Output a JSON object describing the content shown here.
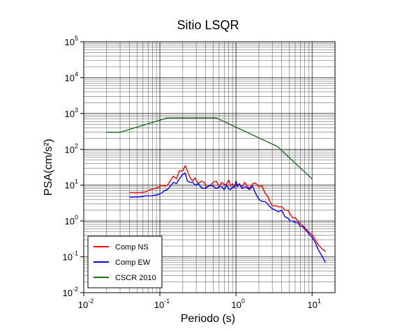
{
  "chart_data": {
    "type": "line",
    "title": "Sitio LSQR",
    "xlabel": "Periodo (s)",
    "ylabel": "PSA(cm/s²)",
    "xscale": "log",
    "yscale": "log",
    "xlim": [
      0.01,
      20
    ],
    "ylim": [
      0.01,
      100000
    ],
    "grid": true,
    "legend_position": "bottom-left",
    "x_ticks": [
      {
        "base": "10",
        "exp": "-2",
        "value": 0.01
      },
      {
        "base": "10",
        "exp": "-1",
        "value": 0.1
      },
      {
        "base": "10",
        "exp": "0",
        "value": 1
      },
      {
        "base": "10",
        "exp": "1",
        "value": 10
      }
    ],
    "y_ticks": [
      {
        "base": "10",
        "exp": "-2",
        "value": 0.01
      },
      {
        "base": "10",
        "exp": "-1",
        "value": 0.1
      },
      {
        "base": "10",
        "exp": "0",
        "value": 1
      },
      {
        "base": "10",
        "exp": "1",
        "value": 10
      },
      {
        "base": "10",
        "exp": "2",
        "value": 100
      },
      {
        "base": "10",
        "exp": "3",
        "value": 1000
      },
      {
        "base": "10",
        "exp": "4",
        "value": 10000
      },
      {
        "base": "10",
        "exp": "5",
        "value": 100000
      }
    ],
    "series": [
      {
        "name": "Comp NS",
        "color": "#ff0000",
        "x": [
          0.04,
          0.055,
          0.065,
          0.075,
          0.085,
          0.095,
          0.105,
          0.115,
          0.125,
          0.135,
          0.15,
          0.165,
          0.18,
          0.2,
          0.215,
          0.23,
          0.25,
          0.27,
          0.29,
          0.32,
          0.35,
          0.38,
          0.41,
          0.45,
          0.5,
          0.55,
          0.6,
          0.65,
          0.7,
          0.75,
          0.8,
          0.85,
          0.9,
          0.95,
          1.0,
          1.05,
          1.1,
          1.2,
          1.3,
          1.4,
          1.5,
          1.65,
          1.8,
          2.0,
          2.2,
          2.4,
          2.6,
          2.8,
          3.0,
          3.3,
          3.6,
          4.0,
          4.4,
          4.8,
          5.2,
          5.6,
          6.0,
          6.5,
          7.0,
          7.5,
          8.0,
          9.0,
          10.0,
          11.0,
          12.0,
          13.0,
          15.0
        ],
        "y": [
          6.2,
          6.2,
          6.5,
          7.5,
          8.0,
          8.5,
          10.0,
          9.5,
          10.0,
          12.5,
          18.0,
          15.0,
          25.0,
          25.0,
          35.0,
          25.0,
          16.0,
          13.0,
          16.0,
          11.0,
          13.0,
          12.0,
          9.0,
          9.5,
          12.0,
          13.0,
          9.0,
          12.0,
          10.5,
          10.5,
          14.0,
          9.5,
          11.0,
          9.0,
          11.0,
          10.0,
          11.0,
          9.0,
          12.0,
          9.5,
          8.0,
          11.0,
          11.5,
          9.0,
          9.5,
          6.0,
          5.0,
          3.5,
          2.6,
          2.7,
          2.5,
          2.5,
          2.0,
          2.0,
          1.5,
          1.2,
          1.25,
          1.0,
          0.85,
          0.75,
          0.65,
          0.5,
          0.42,
          0.3,
          0.22,
          0.18,
          0.14
        ]
      },
      {
        "name": "Comp EW",
        "color": "#0000ff",
        "x": [
          0.04,
          0.055,
          0.065,
          0.075,
          0.085,
          0.095,
          0.105,
          0.115,
          0.125,
          0.135,
          0.15,
          0.165,
          0.18,
          0.2,
          0.215,
          0.23,
          0.25,
          0.27,
          0.29,
          0.32,
          0.35,
          0.38,
          0.41,
          0.45,
          0.5,
          0.55,
          0.6,
          0.65,
          0.7,
          0.75,
          0.8,
          0.85,
          0.9,
          0.95,
          1.0,
          1.05,
          1.1,
          1.2,
          1.3,
          1.4,
          1.5,
          1.65,
          1.8,
          2.0,
          2.2,
          2.4,
          2.6,
          2.8,
          3.0,
          3.3,
          3.6,
          4.0,
          4.4,
          4.8,
          5.2,
          5.6,
          6.0,
          6.5,
          7.0,
          7.5,
          8.0,
          9.0,
          10.0,
          11.0,
          12.0,
          13.0,
          15.0
        ],
        "y": [
          4.6,
          4.7,
          5.0,
          5.0,
          5.2,
          5.5,
          6.0,
          7.0,
          7.5,
          9.0,
          12.0,
          11.0,
          15.0,
          20.0,
          22.0,
          13.0,
          12.0,
          12.0,
          10.0,
          11.0,
          8.5,
          8.0,
          8.5,
          10.0,
          9.5,
          8.0,
          9.0,
          9.0,
          7.5,
          10.0,
          8.0,
          7.5,
          9.0,
          8.5,
          13.0,
          9.0,
          11.0,
          8.0,
          9.0,
          8.5,
          7.5,
          9.5,
          6.0,
          4.0,
          3.5,
          3.5,
          3.0,
          2.5,
          2.2,
          2.0,
          1.8,
          2.0,
          1.3,
          1.2,
          1.0,
          1.0,
          0.9,
          0.9,
          0.7,
          0.7,
          0.6,
          0.45,
          0.35,
          0.25,
          0.16,
          0.12,
          0.07
        ]
      },
      {
        "name": "CSCR 2010",
        "color": "#1e6b1e",
        "x": [
          0.02,
          0.03,
          0.125,
          0.55,
          3.5,
          10.0
        ],
        "y": [
          300,
          300,
          750,
          750,
          120,
          15
        ]
      }
    ]
  }
}
